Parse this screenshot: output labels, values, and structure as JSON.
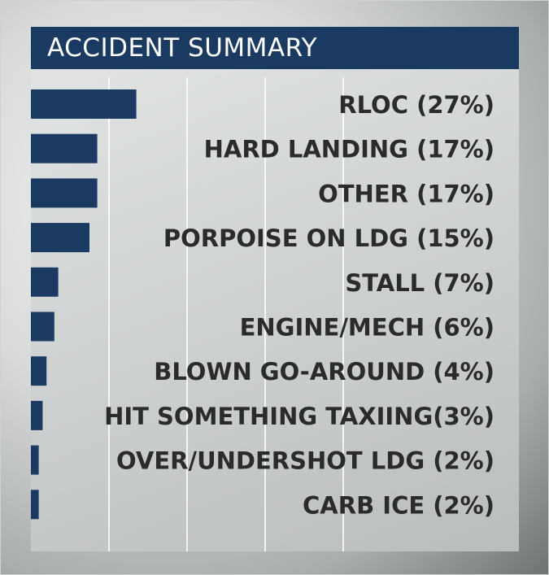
{
  "chart_data": {
    "type": "bar",
    "orientation": "horizontal",
    "title": "ACCIDENT SUMMARY",
    "categories": [
      "RLOC (27%)",
      "HARD LANDING (17%)",
      "OTHER (17%)",
      "PORPOISE ON LDG (15%)",
      "STALL (7%)",
      "ENGINE/MECH (6%)",
      "BLOWN GO-AROUND (4%)",
      "HIT SOMETHING TAXIING(3%)",
      "OVER/UNDERSHOT LDG (2%)",
      "CARB ICE (2%)"
    ],
    "values": [
      27,
      17,
      17,
      15,
      7,
      6,
      4,
      3,
      2,
      2
    ],
    "unit": "%",
    "xlim": [
      0,
      100
    ],
    "grid": true,
    "colors": {
      "bar": "#1a3a62",
      "title_bar": "#1a3a62",
      "title_text": "#ffffff",
      "label": "#2b2b2b",
      "grid": "#ffffff"
    }
  }
}
